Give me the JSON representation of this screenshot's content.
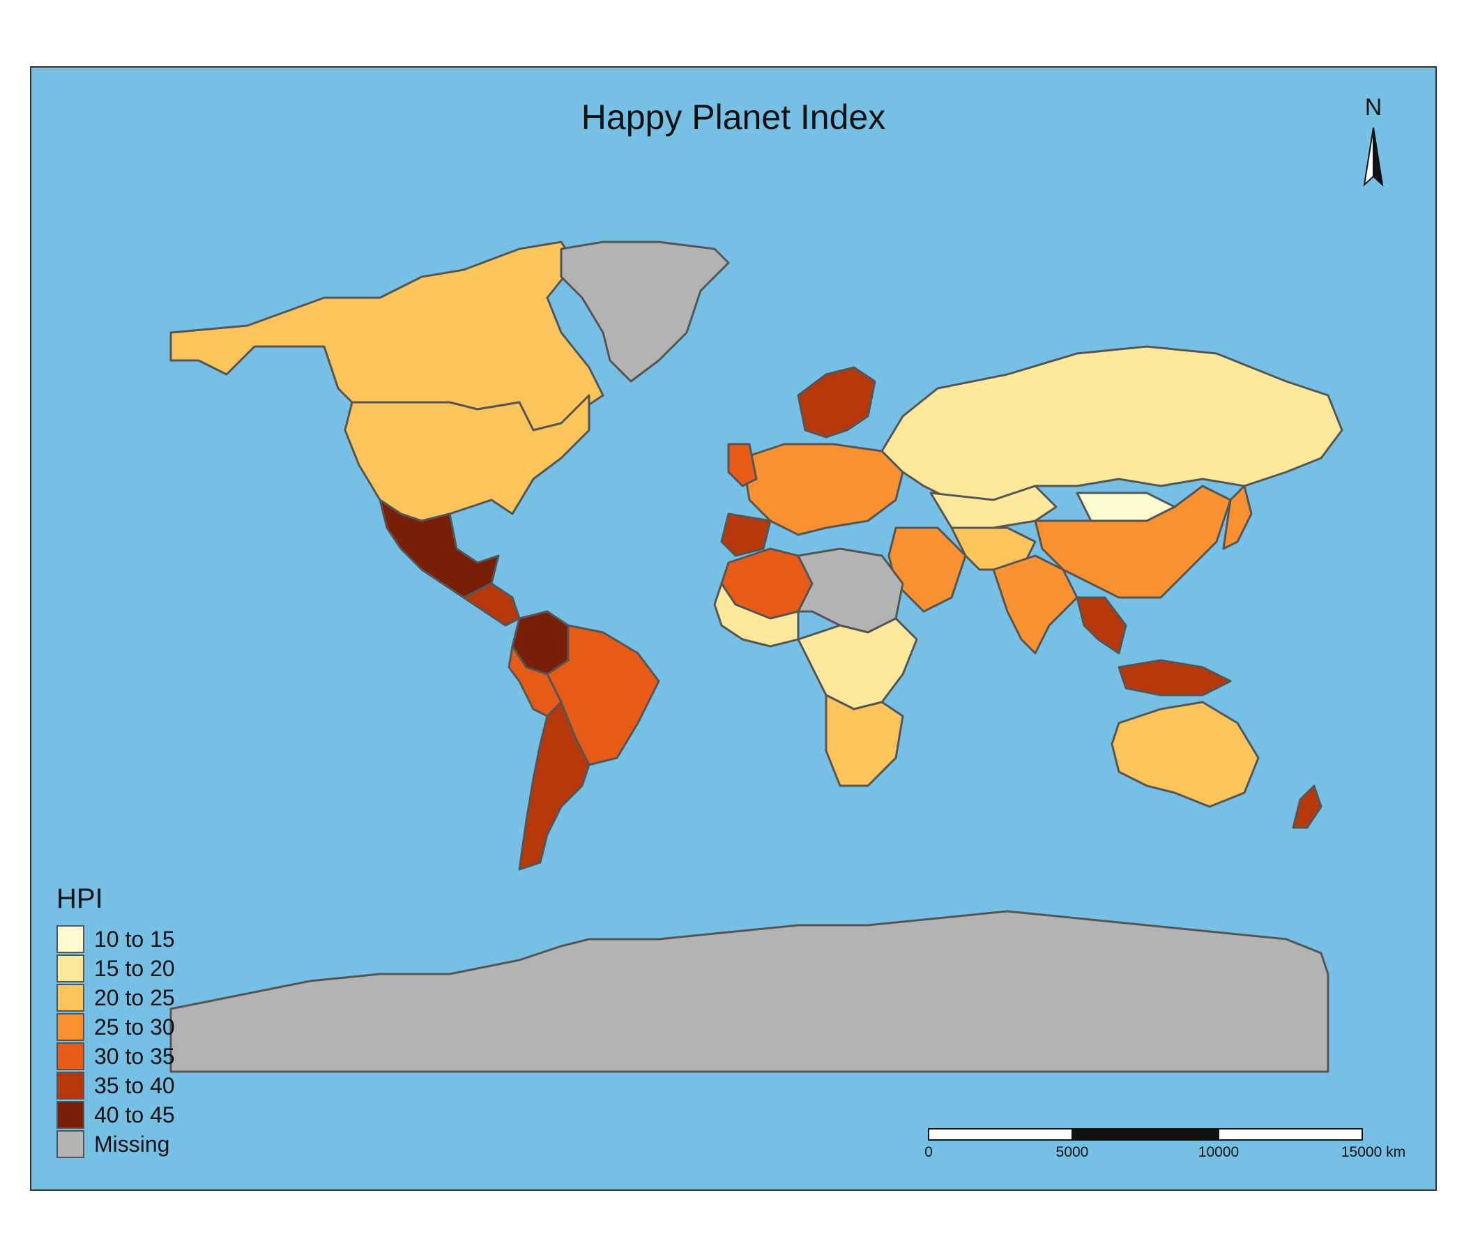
{
  "map": {
    "title": "Happy Planet Index",
    "north_label": "N",
    "ocean_color": "#76c0e5",
    "border_color": "#555555",
    "legend": {
      "title": "HPI",
      "items": [
        {
          "label": "10 to 15",
          "color": "#fffbd0"
        },
        {
          "label": "15 to 20",
          "color": "#fde89c"
        },
        {
          "label": "20 to 25",
          "color": "#fbc55c"
        },
        {
          "label": "25 to 30",
          "color": "#f99130"
        },
        {
          "label": "30 to 35",
          "color": "#e85b17"
        },
        {
          "label": "35 to 40",
          "color": "#b7380a"
        },
        {
          "label": "40 to 45",
          "color": "#7a1f07"
        },
        {
          "label": "Missing",
          "color": "#b3b3b3"
        }
      ]
    },
    "scalebar": {
      "ticks": [
        "0",
        "5000",
        "10000",
        "15000 km"
      ]
    },
    "regions": [
      {
        "name": "canada",
        "class": "20 to 25"
      },
      {
        "name": "usa",
        "class": "20 to 25"
      },
      {
        "name": "greenland",
        "class": "Missing"
      },
      {
        "name": "mexico",
        "class": "40 to 45"
      },
      {
        "name": "colombia",
        "class": "40 to 45"
      },
      {
        "name": "brazil",
        "class": "30 to 35"
      },
      {
        "name": "argentina",
        "class": "35 to 40"
      },
      {
        "name": "russia",
        "class": "15 to 20"
      },
      {
        "name": "china",
        "class": "25 to 30"
      },
      {
        "name": "india",
        "class": "25 to 30"
      },
      {
        "name": "australia",
        "class": "20 to 25"
      },
      {
        "name": "antarctica",
        "class": "Missing"
      },
      {
        "name": "mongolia",
        "class": "10 to 15"
      },
      {
        "name": "kazakhstan",
        "class": "15 to 20"
      },
      {
        "name": "scandinavia",
        "class": "35 to 40"
      },
      {
        "name": "europe",
        "class": "25 to 30"
      },
      {
        "name": "north-africa",
        "class": "30 to 35"
      },
      {
        "name": "sahara",
        "class": "Missing"
      },
      {
        "name": "central-africa",
        "class": "15 to 20"
      },
      {
        "name": "southern-africa",
        "class": "20 to 25"
      },
      {
        "name": "indonesia",
        "class": "35 to 40"
      },
      {
        "name": "new-zealand",
        "class": "35 to 40"
      }
    ]
  }
}
